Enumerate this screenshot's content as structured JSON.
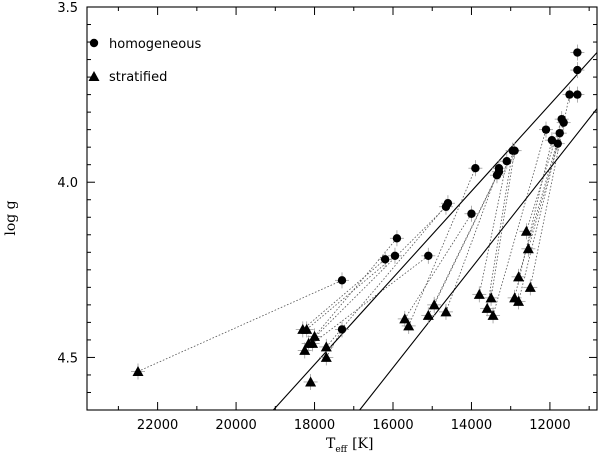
{
  "chart_data": {
    "type": "scatter",
    "title": "",
    "xlabel_main": "T",
    "xlabel_sub": "eff",
    "xlabel_unit": "[K]",
    "ylabel": "log g",
    "xlim": [
      23800,
      10800
    ],
    "ylim": [
      3.5,
      4.65
    ],
    "x_ticks": [
      22000,
      20000,
      18000,
      16000,
      14000,
      12000
    ],
    "x_tick_labels": [
      "22000",
      "20000",
      "18000",
      "16000",
      "14000",
      "12000"
    ],
    "y_ticks": [
      3.5,
      4.0,
      4.5
    ],
    "y_tick_labels": [
      "3.5",
      "4.0",
      "4.5"
    ],
    "legend": {
      "placement": "top-left",
      "entries": [
        {
          "label": "homogeneous",
          "marker": "circle"
        },
        {
          "label": "stratified",
          "marker": "triangle"
        }
      ]
    },
    "reference_lines": [
      {
        "x": [
          19050,
          10800
        ],
        "y": [
          4.65,
          3.63
        ]
      },
      {
        "x": [
          16850,
          10800
        ],
        "y": [
          4.65,
          3.79
        ]
      }
    ],
    "series": [
      {
        "name": "homogeneous",
        "marker": "circle",
        "points": [
          [
            11300,
            3.63
          ],
          [
            11300,
            3.68
          ],
          [
            11300,
            3.75
          ],
          [
            11500,
            3.75
          ],
          [
            11700,
            3.82
          ],
          [
            11650,
            3.83
          ],
          [
            11750,
            3.86
          ],
          [
            11800,
            3.89
          ],
          [
            11950,
            3.88
          ],
          [
            12100,
            3.85
          ],
          [
            12900,
            3.91
          ],
          [
            12950,
            3.91
          ],
          [
            13100,
            3.94
          ],
          [
            13300,
            3.96
          ],
          [
            13300,
            3.97
          ],
          [
            13350,
            3.98
          ],
          [
            13900,
            3.96
          ],
          [
            14000,
            4.09
          ],
          [
            14600,
            4.06
          ],
          [
            14650,
            4.07
          ],
          [
            15100,
            4.21
          ],
          [
            15900,
            4.16
          ],
          [
            15950,
            4.21
          ],
          [
            16200,
            4.22
          ],
          [
            17300,
            4.28
          ],
          [
            17300,
            4.42
          ]
        ]
      },
      {
        "name": "stratified",
        "marker": "triangle",
        "points": [
          [
            22500,
            4.54
          ],
          [
            18300,
            4.42
          ],
          [
            18200,
            4.42
          ],
          [
            18000,
            4.44
          ],
          [
            18050,
            4.46
          ],
          [
            18150,
            4.46
          ],
          [
            18250,
            4.48
          ],
          [
            17700,
            4.47
          ],
          [
            17700,
            4.5
          ],
          [
            18100,
            4.57
          ],
          [
            15700,
            4.39
          ],
          [
            15600,
            4.41
          ],
          [
            15100,
            4.38
          ],
          [
            14950,
            4.35
          ],
          [
            14650,
            4.37
          ],
          [
            13800,
            4.32
          ],
          [
            13600,
            4.36
          ],
          [
            13500,
            4.33
          ],
          [
            13450,
            4.38
          ],
          [
            12900,
            4.33
          ],
          [
            12800,
            4.34
          ],
          [
            12800,
            4.27
          ],
          [
            12600,
            4.14
          ],
          [
            12550,
            4.19
          ],
          [
            12500,
            4.3
          ]
        ]
      }
    ],
    "links": [
      [
        [
          22500,
          4.54
        ],
        [
          17300,
          4.28
        ]
      ],
      [
        [
          18300,
          4.42
        ],
        [
          16200,
          4.22
        ]
      ],
      [
        [
          18200,
          4.42
        ],
        [
          15950,
          4.21
        ]
      ],
      [
        [
          18000,
          4.44
        ],
        [
          15900,
          4.16
        ]
      ],
      [
        [
          18050,
          4.46
        ],
        [
          15100,
          4.21
        ]
      ],
      [
        [
          18150,
          4.46
        ],
        [
          14650,
          4.07
        ]
      ],
      [
        [
          17700,
          4.47
        ],
        [
          14600,
          4.06
        ]
      ],
      [
        [
          17700,
          4.5
        ],
        [
          17300,
          4.42
        ]
      ],
      [
        [
          15700,
          4.39
        ],
        [
          14000,
          4.09
        ]
      ],
      [
        [
          15600,
          4.41
        ],
        [
          13900,
          3.96
        ]
      ],
      [
        [
          15100,
          4.38
        ],
        [
          13350,
          3.98
        ]
      ],
      [
        [
          14950,
          4.35
        ],
        [
          13300,
          3.97
        ]
      ],
      [
        [
          14650,
          4.37
        ],
        [
          13300,
          3.96
        ]
      ],
      [
        [
          13800,
          4.32
        ],
        [
          13100,
          3.94
        ]
      ],
      [
        [
          13600,
          4.36
        ],
        [
          12950,
          3.91
        ]
      ],
      [
        [
          13500,
          4.33
        ],
        [
          12900,
          3.91
        ]
      ],
      [
        [
          13450,
          4.38
        ],
        [
          12100,
          3.85
        ]
      ],
      [
        [
          12900,
          4.33
        ],
        [
          11950,
          3.88
        ]
      ],
      [
        [
          12800,
          4.34
        ],
        [
          11800,
          3.89
        ]
      ],
      [
        [
          12800,
          4.27
        ],
        [
          11750,
          3.86
        ]
      ],
      [
        [
          12600,
          4.14
        ],
        [
          11700,
          3.82
        ]
      ],
      [
        [
          12550,
          4.19
        ],
        [
          11650,
          3.83
        ]
      ],
      [
        [
          12500,
          4.3
        ],
        [
          11500,
          3.75
        ]
      ]
    ]
  }
}
